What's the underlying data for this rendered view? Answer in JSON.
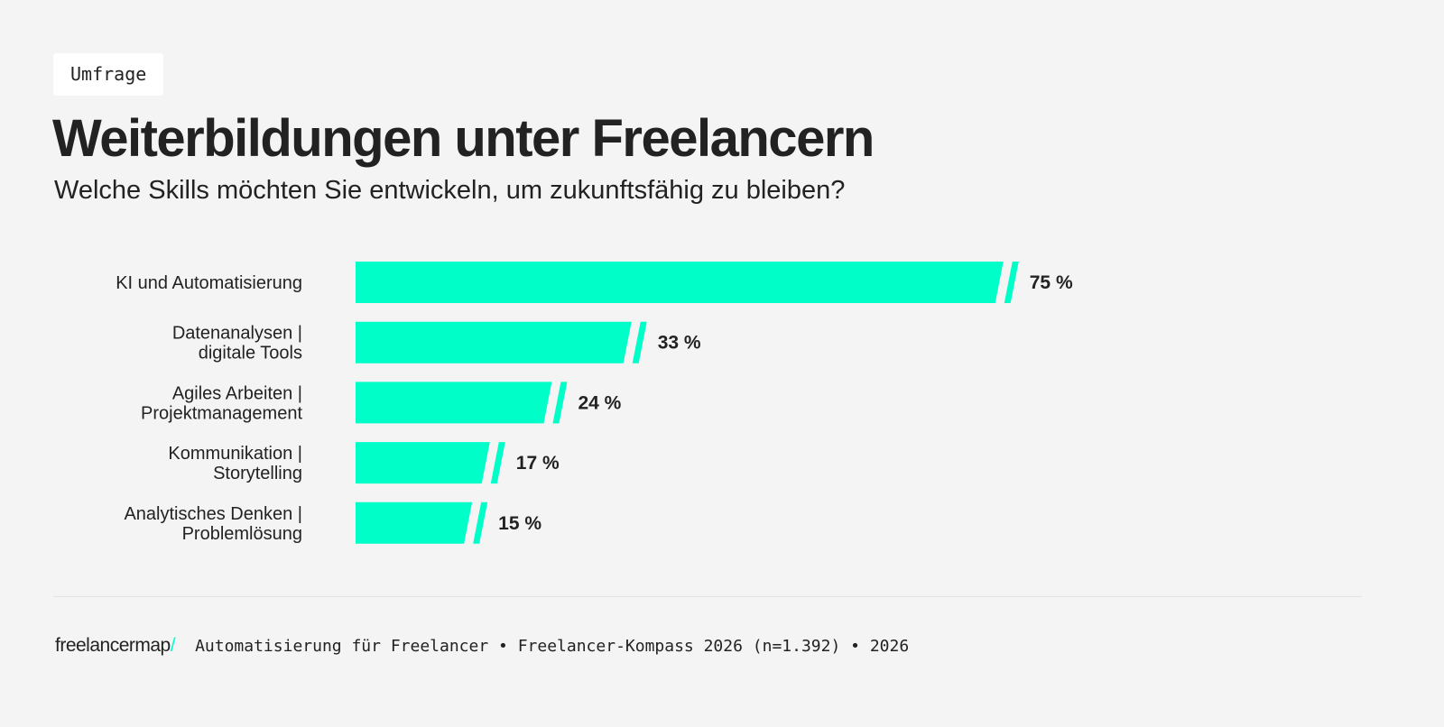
{
  "tag": "Umfrage",
  "title": "Weiterbildungen unter Freelancern",
  "subtitle": "Welche Skills möchten Sie entwickeln, um zukunftsfähig zu bleiben?",
  "chart_data": {
    "type": "bar",
    "orientation": "horizontal",
    "categories": [
      [
        "KI und Automatisierung"
      ],
      [
        "Datenanalysen |",
        "digitale Tools"
      ],
      [
        "Agiles Arbeiten |",
        "Projektmanagement"
      ],
      [
        "Kommunikation |",
        "Storytelling"
      ],
      [
        "Analytisches Denken |",
        "Problemlösung"
      ]
    ],
    "values": [
      75,
      33,
      24,
      17,
      15
    ],
    "value_labels": [
      "75 %",
      "33 %",
      "24 %",
      "17 %",
      "15 %"
    ],
    "unit": "%",
    "bar_color": "#00ffc8",
    "grid": false
  },
  "footer": {
    "logo": "freelancermap",
    "logo_slash": "/",
    "source": "Automatisierung für Freelancer • Freelancer-Kompass 2026 (n=1.392) • 2026"
  }
}
